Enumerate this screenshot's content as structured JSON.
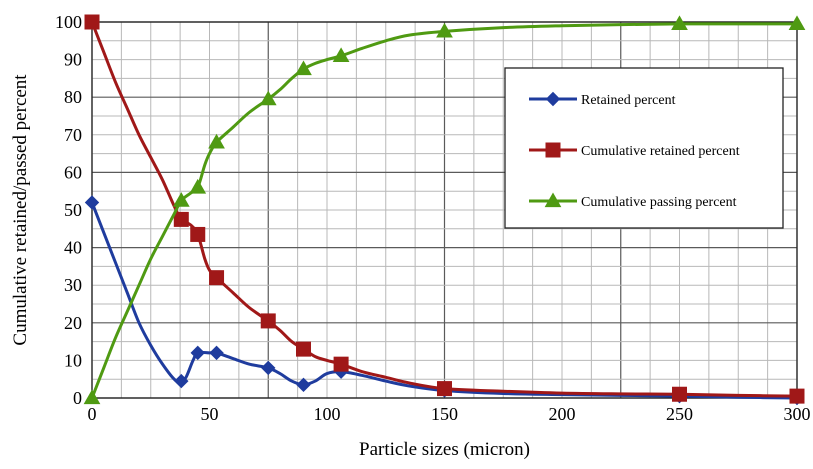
{
  "chart_data": {
    "type": "line",
    "xlabel": "Particle sizes (micron)",
    "ylabel": "Cumulative retained/passed percent",
    "xlim": [
      0,
      300
    ],
    "ylim": [
      0,
      100
    ],
    "x_ticks": [
      "0",
      "50",
      "100",
      "150",
      "200",
      "250",
      "300"
    ],
    "y_ticks": [
      "0",
      "10",
      "20",
      "30",
      "40",
      "50",
      "60",
      "70",
      "80",
      "90",
      "100"
    ],
    "grid": true,
    "legend_position": "right",
    "series": [
      {
        "name": "Retained percent",
        "color": "#1f3c9e",
        "marker": "diamond",
        "points": [
          [
            0,
            52
          ],
          [
            38,
            4.5
          ],
          [
            45,
            12
          ],
          [
            53,
            12
          ],
          [
            75,
            8
          ],
          [
            90,
            3.5
          ],
          [
            106,
            7
          ],
          [
            150,
            2
          ],
          [
            250,
            0.5
          ],
          [
            300,
            0
          ]
        ],
        "curve": [
          [
            0,
            52
          ],
          [
            5,
            44
          ],
          [
            10,
            36
          ],
          [
            15,
            28
          ],
          [
            20,
            20
          ],
          [
            25,
            14
          ],
          [
            30,
            9
          ],
          [
            35,
            5
          ],
          [
            38,
            4.5
          ],
          [
            40,
            5.5
          ],
          [
            43,
            10
          ],
          [
            45,
            12
          ],
          [
            50,
            12
          ],
          [
            53,
            12
          ],
          [
            60,
            10.5
          ],
          [
            67,
            9
          ],
          [
            75,
            8
          ],
          [
            80,
            6.5
          ],
          [
            85,
            4.5
          ],
          [
            90,
            3.5
          ],
          [
            95,
            4.5
          ],
          [
            100,
            6.5
          ],
          [
            106,
            7
          ],
          [
            115,
            6
          ],
          [
            125,
            4.5
          ],
          [
            135,
            3.2
          ],
          [
            150,
            2
          ],
          [
            175,
            1.2
          ],
          [
            200,
            0.9
          ],
          [
            225,
            0.7
          ],
          [
            250,
            0.5
          ],
          [
            275,
            0.2
          ],
          [
            300,
            0
          ]
        ]
      },
      {
        "name": "Cumulative retained percent",
        "color": "#a01818",
        "marker": "square",
        "points": [
          [
            0,
            100
          ],
          [
            38,
            47.5
          ],
          [
            45,
            43.5
          ],
          [
            53,
            32
          ],
          [
            75,
            20.5
          ],
          [
            90,
            13
          ],
          [
            106,
            9
          ],
          [
            150,
            2.5
          ],
          [
            250,
            1
          ],
          [
            300,
            0.5
          ]
        ],
        "curve": [
          [
            0,
            100
          ],
          [
            5,
            92
          ],
          [
            10,
            84
          ],
          [
            15,
            77
          ],
          [
            20,
            70
          ],
          [
            25,
            64
          ],
          [
            30,
            58
          ],
          [
            35,
            51
          ],
          [
            38,
            47.5
          ],
          [
            42,
            46
          ],
          [
            45,
            43.5
          ],
          [
            48,
            37
          ],
          [
            50,
            34
          ],
          [
            53,
            32
          ],
          [
            60,
            28
          ],
          [
            67,
            24
          ],
          [
            75,
            20.5
          ],
          [
            80,
            18
          ],
          [
            85,
            15
          ],
          [
            90,
            13
          ],
          [
            95,
            11
          ],
          [
            100,
            10
          ],
          [
            106,
            9
          ],
          [
            115,
            7
          ],
          [
            125,
            5.5
          ],
          [
            135,
            4
          ],
          [
            150,
            2.5
          ],
          [
            175,
            1.8
          ],
          [
            200,
            1.3
          ],
          [
            225,
            1.1
          ],
          [
            250,
            1
          ],
          [
            275,
            0.7
          ],
          [
            300,
            0.5
          ]
        ]
      },
      {
        "name": "Cumulative passing percent",
        "color": "#4f9a12",
        "marker": "triangle",
        "points": [
          [
            0,
            0
          ],
          [
            38,
            52.5
          ],
          [
            45,
            56
          ],
          [
            53,
            68
          ],
          [
            75,
            79.5
          ],
          [
            90,
            87.5
          ],
          [
            106,
            91
          ],
          [
            150,
            97.5
          ],
          [
            250,
            99.5
          ],
          [
            300,
            99.5
          ]
        ],
        "curve": [
          [
            0,
            0
          ],
          [
            5,
            8
          ],
          [
            10,
            16
          ],
          [
            15,
            23
          ],
          [
            20,
            30
          ],
          [
            25,
            37
          ],
          [
            30,
            43
          ],
          [
            35,
            49
          ],
          [
            38,
            52.5
          ],
          [
            42,
            54.5
          ],
          [
            45,
            56
          ],
          [
            48,
            62
          ],
          [
            50,
            65
          ],
          [
            53,
            68
          ],
          [
            60,
            72
          ],
          [
            67,
            76
          ],
          [
            75,
            79.5
          ],
          [
            80,
            82
          ],
          [
            85,
            85
          ],
          [
            90,
            87.5
          ],
          [
            95,
            89
          ],
          [
            100,
            90
          ],
          [
            106,
            91
          ],
          [
            115,
            93
          ],
          [
            125,
            95
          ],
          [
            135,
            96.5
          ],
          [
            150,
            97.5
          ],
          [
            175,
            98.5
          ],
          [
            200,
            99
          ],
          [
            225,
            99.3
          ],
          [
            250,
            99.5
          ],
          [
            275,
            99.5
          ],
          [
            300,
            99.5
          ]
        ]
      }
    ]
  }
}
